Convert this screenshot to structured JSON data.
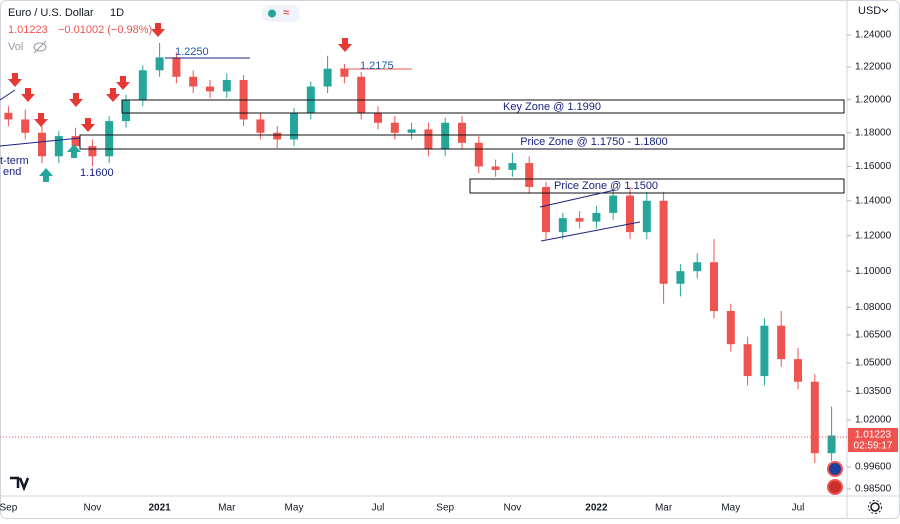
{
  "chart_data": {
    "type": "candlestick",
    "title": "Euro / U.S. Dollar",
    "interval": "1D",
    "quote": "1.01223",
    "change": "−0.01002 (−0.98%)",
    "volume_label": "Vol",
    "currency": "USD",
    "last_price_label": "1.01223",
    "countdown": "02:59:17",
    "annotations": [
      "1.2250",
      "1.2175",
      "1.1600",
      "Key Zone @ 1.1990",
      "Price Zone @ 1.1750 - 1.1800",
      "Price Zone @ 1.1500",
      "t-term",
      "end"
    ],
    "categories": [
      "Sep",
      null,
      null,
      null,
      null,
      "Nov",
      null,
      null,
      null,
      "2021",
      null,
      null,
      null,
      "Mar",
      null,
      null,
      null,
      "May",
      null,
      null,
      null,
      null,
      "Jul",
      null,
      null,
      null,
      "Sep",
      null,
      null,
      null,
      "Nov",
      null,
      null,
      null,
      null,
      "2022",
      null,
      null,
      null,
      "Mar",
      null,
      null,
      null,
      "May",
      null,
      null,
      null,
      "Jul",
      null,
      null
    ],
    "open": [
      1.192,
      1.188,
      1.18,
      1.166,
      1.178,
      1.172,
      1.166,
      1.187,
      1.2,
      1.218,
      1.226,
      1.214,
      1.208,
      1.205,
      1.212,
      1.188,
      1.18,
      1.176,
      1.192,
      1.208,
      1.219,
      1.214,
      1.192,
      1.186,
      1.18,
      1.182,
      1.17,
      1.186,
      1.174,
      1.16,
      1.158,
      1.162,
      1.148,
      1.122,
      1.13,
      1.128,
      1.133,
      1.143,
      1.122,
      1.14,
      1.093,
      1.1,
      1.105,
      1.078,
      1.06,
      1.043,
      1.07,
      1.052,
      1.04,
      1.003
    ],
    "high": [
      1.196,
      1.194,
      1.184,
      1.181,
      1.183,
      1.176,
      1.19,
      1.203,
      1.221,
      1.235,
      1.229,
      1.218,
      1.212,
      1.216,
      1.215,
      1.192,
      1.184,
      1.195,
      1.211,
      1.227,
      1.222,
      1.217,
      1.196,
      1.19,
      1.186,
      1.186,
      1.189,
      1.19,
      1.178,
      1.164,
      1.168,
      1.166,
      1.151,
      1.133,
      1.134,
      1.137,
      1.147,
      1.148,
      1.145,
      1.145,
      1.104,
      1.11,
      1.118,
      1.082,
      1.064,
      1.074,
      1.078,
      1.058,
      1.044,
      1.027
    ],
    "low": [
      1.184,
      1.176,
      1.162,
      1.162,
      1.168,
      1.16,
      1.162,
      1.183,
      1.196,
      1.214,
      1.21,
      1.204,
      1.201,
      1.201,
      1.184,
      1.176,
      1.171,
      1.172,
      1.188,
      1.204,
      1.21,
      1.188,
      1.182,
      1.176,
      1.176,
      1.166,
      1.166,
      1.17,
      1.156,
      1.154,
      1.154,
      1.144,
      1.118,
      1.118,
      1.124,
      1.124,
      1.129,
      1.118,
      1.118,
      1.082,
      1.086,
      1.096,
      1.074,
      1.056,
      1.038,
      1.038,
      1.048,
      1.036,
      0.998,
      0.999
    ],
    "close": [
      1.188,
      1.18,
      1.166,
      1.178,
      1.172,
      1.166,
      1.187,
      1.2,
      1.218,
      1.226,
      1.214,
      1.208,
      1.205,
      1.212,
      1.188,
      1.18,
      1.176,
      1.192,
      1.208,
      1.219,
      1.214,
      1.192,
      1.186,
      1.18,
      1.182,
      1.17,
      1.186,
      1.174,
      1.16,
      1.158,
      1.162,
      1.148,
      1.122,
      1.13,
      1.128,
      1.133,
      1.143,
      1.122,
      1.14,
      1.093,
      1.1,
      1.105,
      1.078,
      1.06,
      1.043,
      1.07,
      1.052,
      1.04,
      1.003,
      1.012
    ],
    "up_color": "#26a69a",
    "down_color": "#ef5350",
    "log_scale": true,
    "ylim": [
      0.9745,
      1.259
    ],
    "yticks": [
      {
        "value": 1.24,
        "label": "1.24000"
      },
      {
        "value": 1.22,
        "label": "1.22000"
      },
      {
        "value": 1.2,
        "label": "1.20000"
      },
      {
        "value": 1.18,
        "label": "1.18000"
      },
      {
        "value": 1.16,
        "label": "1.16000"
      },
      {
        "value": 1.14,
        "label": "1.14000"
      },
      {
        "value": 1.12,
        "label": "1.12000"
      },
      {
        "value": 1.1,
        "label": "1.10000"
      },
      {
        "value": 1.08,
        "label": "1.08000"
      },
      {
        "value": 1.065,
        "label": "1.06500"
      },
      {
        "value": 1.05,
        "label": "1.05000"
      },
      {
        "value": 1.035,
        "label": "1.03500"
      },
      {
        "value": 1.02,
        "label": "1.02000"
      },
      {
        "value": 0.996,
        "label": "0.99600"
      },
      {
        "value": 0.985,
        "label": "0.98500"
      }
    ]
  }
}
